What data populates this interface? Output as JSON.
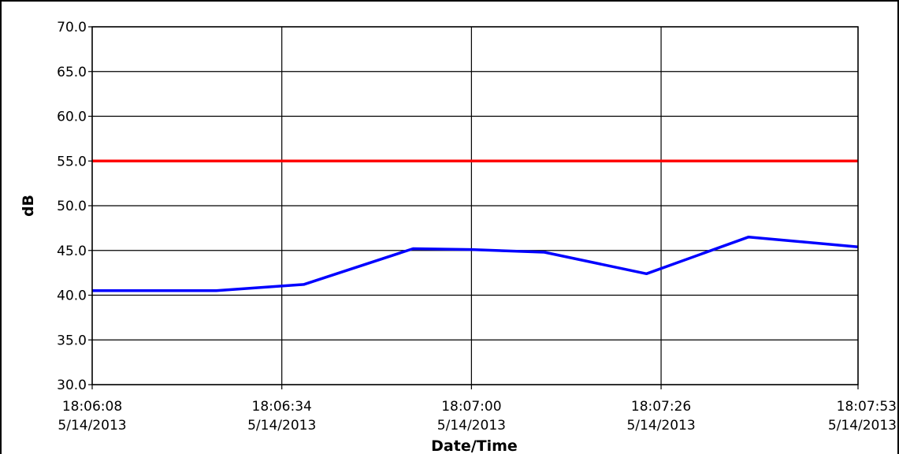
{
  "chart_data": {
    "type": "line",
    "title": "",
    "xlabel": "Date/Time",
    "ylabel": "dB",
    "ylim": [
      30,
      70
    ],
    "yticks": [
      "30.0",
      "35.0",
      "40.0",
      "45.0",
      "50.0",
      "55.0",
      "60.0",
      "65.0",
      "70.0"
    ],
    "xlim": [
      "2013-05-14 18:06:08",
      "2013-05-14 18:07:53"
    ],
    "xticks": [
      {
        "time": "18:06:08",
        "date": "5/14/2013"
      },
      {
        "time": "18:06:34",
        "date": "5/14/2013"
      },
      {
        "time": "18:07:00",
        "date": "5/14/2013"
      },
      {
        "time": "18:07:26",
        "date": "5/14/2013"
      },
      {
        "time": "18:07:53",
        "date": "5/14/2013"
      }
    ],
    "grid": true,
    "legend": "none",
    "series": [
      {
        "color": "#0000ff",
        "points": [
          {
            "x": "2013-05-14 18:06:08",
            "y": 40.5
          },
          {
            "x": "2013-05-14 18:06:25",
            "y": 40.5
          },
          {
            "x": "2013-05-14 18:06:37",
            "y": 41.2
          },
          {
            "x": "2013-05-14 18:06:52",
            "y": 45.2
          },
          {
            "x": "2013-05-14 18:07:00",
            "y": 45.1
          },
          {
            "x": "2013-05-14 18:07:10",
            "y": 44.8
          },
          {
            "x": "2013-05-14 18:07:24",
            "y": 42.4
          },
          {
            "x": "2013-05-14 18:07:38",
            "y": 46.5
          },
          {
            "x": "2013-05-14 18:07:53",
            "y": 45.4
          }
        ]
      },
      {
        "color": "#ff0000",
        "points": [
          {
            "x": "2013-05-14 18:06:08",
            "y": 55.0
          },
          {
            "x": "2013-05-14 18:07:53",
            "y": 55.0
          }
        ]
      }
    ]
  }
}
